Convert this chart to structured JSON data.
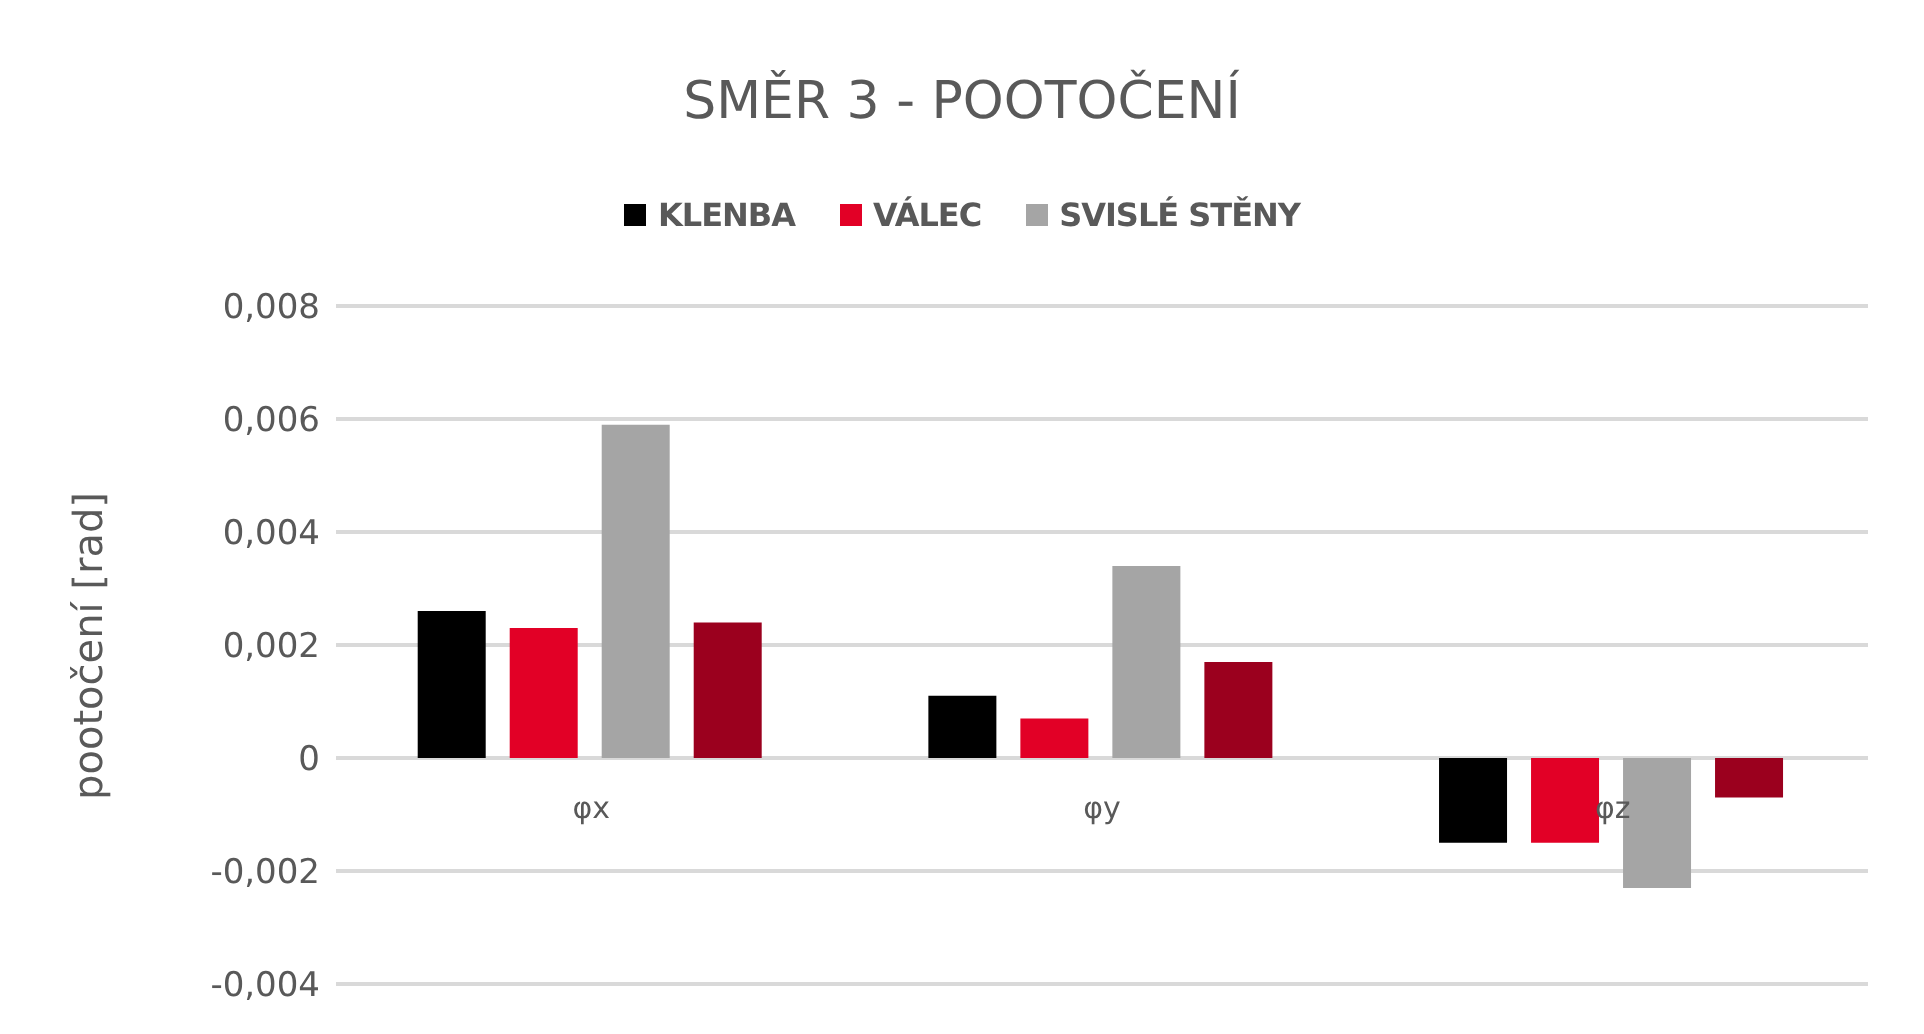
{
  "chart_data": {
    "type": "bar",
    "title": "SMĚR 3 - POOTOČENÍ",
    "ylabel": "pootočení [rad]",
    "categories": [
      "φx",
      "φy",
      "φz"
    ],
    "series": [
      {
        "name": "KLENBA",
        "color": "#000000",
        "values": [
          0.0026,
          0.0011,
          -0.0015
        ]
      },
      {
        "name": "VÁLEC",
        "color": "#e20026",
        "values": [
          0.0023,
          0.0007,
          -0.0015
        ]
      },
      {
        "name": "SVISLÉ STĚNY",
        "color": "#a5a5a5",
        "values": [
          0.0059,
          0.0034,
          -0.0023
        ]
      },
      {
        "color": "#9b001e",
        "values": [
          0.0024,
          0.0017,
          -0.0007
        ]
      }
    ],
    "ylim": [
      -0.004,
      0.008
    ],
    "yticks": [
      {
        "value": -0.004,
        "label": "-0,004"
      },
      {
        "value": -0.002,
        "label": "-0,002"
      },
      0,
      {
        "value": 0.002,
        "label": "0,002"
      },
      {
        "value": 0.004,
        "label": "0,004"
      },
      {
        "value": 0.006,
        "label": "0,006"
      },
      {
        "value": 0.008,
        "label": "0,008"
      }
    ],
    "grid": "y",
    "legend": "top"
  }
}
